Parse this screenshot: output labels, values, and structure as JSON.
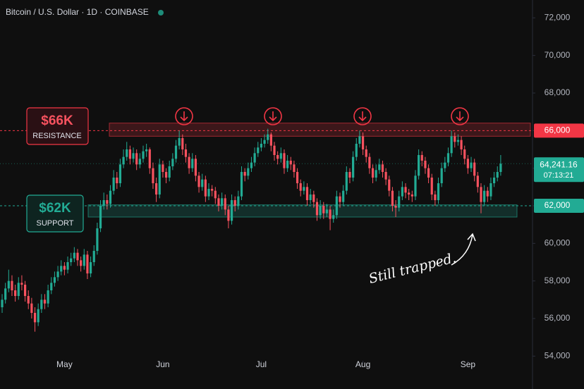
{
  "chart_data": {
    "type": "candlestick",
    "title": "Bitcoin / U.S. Dollar · 1D · COINBASE",
    "up_color": "#22ab94",
    "down_color": "#f7525f",
    "ylim": [
      52250,
      72950
    ],
    "xlim": [
      -0.65,
      161.7
    ],
    "yticks": [
      {
        "value": 54000,
        "label": "54,000"
      },
      {
        "value": 56000,
        "label": "56,000"
      },
      {
        "value": 58000,
        "label": "58,000"
      },
      {
        "value": 60000,
        "label": "60,000"
      },
      {
        "value": 62000,
        "label": "62,000"
      },
      {
        "value": 64000,
        "label": "64,000"
      },
      {
        "value": 66000,
        "label": "66,000"
      },
      {
        "value": 68000,
        "label": "68,000"
      },
      {
        "value": 70000,
        "label": "70,000"
      },
      {
        "value": 72000,
        "label": "72,000"
      }
    ],
    "xticks": [
      {
        "value": 19,
        "label": "May"
      },
      {
        "value": 49,
        "label": "Jun"
      },
      {
        "value": 79,
        "label": "Jul"
      },
      {
        "value": 110,
        "label": "Aug"
      },
      {
        "value": 142,
        "label": "Sep"
      }
    ],
    "levels": [
      {
        "value": 66000,
        "label": "66,000",
        "color": "#f23645"
      },
      {
        "value": 62000,
        "label": "62,000",
        "color": "#22ab94"
      }
    ],
    "zones": [
      {
        "from": 65700,
        "to": 66400,
        "color": "#f23645"
      },
      {
        "from": 61400,
        "to": 62050,
        "color": "#22ab94"
      }
    ],
    "last_price": {
      "value": 64241.16,
      "label": "64,241.16",
      "countdown": "07:13:21"
    },
    "annotations": [
      {
        "title": "$66K",
        "text": "RESISTANCE"
      },
      {
        "title": "$62K",
        "text": "SUPPORT"
      },
      {
        "text": "Still trapped."
      }
    ],
    "candles": [
      [
        56600,
        57300,
        56300,
        57000
      ],
      [
        57000,
        57900,
        56800,
        57600
      ],
      [
        57600,
        58600,
        57400,
        58000
      ],
      [
        58000,
        58300,
        57200,
        57500
      ],
      [
        57500,
        57800,
        56900,
        57200
      ],
      [
        57200,
        58200,
        57000,
        57900
      ],
      [
        57900,
        58300,
        57500,
        57800
      ],
      [
        57800,
        58000,
        56900,
        57200
      ],
      [
        57200,
        57500,
        56500,
        56800
      ],
      [
        56800,
        57100,
        56000,
        56300
      ],
      [
        56300,
        56600,
        55300,
        55800
      ],
      [
        55800,
        56800,
        55600,
        56500
      ],
      [
        56500,
        57300,
        56300,
        57000
      ],
      [
        57000,
        57300,
        56500,
        56800
      ],
      [
        56800,
        57800,
        56600,
        57500
      ],
      [
        57500,
        58200,
        57300,
        57900
      ],
      [
        57900,
        58500,
        57700,
        58200
      ],
      [
        58200,
        58800,
        58000,
        58500
      ],
      [
        58500,
        59100,
        58300,
        58800
      ],
      [
        58800,
        59000,
        58300,
        58600
      ],
      [
        58600,
        59300,
        58400,
        59000
      ],
      [
        59000,
        59500,
        58800,
        59200
      ],
      [
        59200,
        59800,
        59000,
        59500
      ],
      [
        59500,
        59700,
        58800,
        59100
      ],
      [
        59100,
        59300,
        58500,
        58800
      ],
      [
        58800,
        59700,
        58600,
        59400
      ],
      [
        59400,
        59600,
        58100,
        58400
      ],
      [
        58400,
        59300,
        58200,
        59000
      ],
      [
        59000,
        59900,
        58800,
        59600
      ],
      [
        59600,
        61100,
        59400,
        60800
      ],
      [
        60800,
        62300,
        60600,
        62000
      ],
      [
        62000,
        62700,
        61800,
        62300
      ],
      [
        62300,
        62600,
        61800,
        62100
      ],
      [
        62100,
        63100,
        61900,
        62800
      ],
      [
        62800,
        63900,
        62600,
        63500
      ],
      [
        63500,
        63800,
        62900,
        63200
      ],
      [
        63200,
        64500,
        63000,
        64200
      ],
      [
        64200,
        65000,
        64000,
        64600
      ],
      [
        64600,
        65400,
        64400,
        65000
      ],
      [
        65000,
        65200,
        64200,
        64500
      ],
      [
        64500,
        65100,
        64300,
        64800
      ],
      [
        64800,
        65000,
        63900,
        64200
      ],
      [
        64200,
        64800,
        64000,
        64500
      ],
      [
        64500,
        65200,
        64300,
        64900
      ],
      [
        64900,
        65300,
        64600,
        65000
      ],
      [
        65000,
        65100,
        63700,
        64000
      ],
      [
        64000,
        64300,
        62900,
        63200
      ],
      [
        63200,
        63500,
        62200,
        62600
      ],
      [
        62600,
        64500,
        62400,
        64200
      ],
      [
        64200,
        64400,
        63500,
        63800
      ],
      [
        63800,
        64000,
        63200,
        63500
      ],
      [
        63500,
        64400,
        63300,
        64100
      ],
      [
        64100,
        64800,
        63900,
        64500
      ],
      [
        64500,
        65500,
        64300,
        65200
      ],
      [
        65200,
        66000,
        65000,
        65600
      ],
      [
        65600,
        65800,
        64700,
        65000
      ],
      [
        65000,
        65300,
        64300,
        64600
      ],
      [
        64600,
        64800,
        63700,
        64000
      ],
      [
        64000,
        64800,
        63800,
        64500
      ],
      [
        64500,
        64700,
        63300,
        63600
      ],
      [
        63600,
        63800,
        62700,
        63000
      ],
      [
        63000,
        63700,
        62800,
        63400
      ],
      [
        63400,
        63600,
        62200,
        62500
      ],
      [
        62500,
        63200,
        62300,
        62900
      ],
      [
        62900,
        63100,
        62500,
        62800
      ],
      [
        62800,
        63000,
        62100,
        62400
      ],
      [
        62400,
        62600,
        61700,
        62000
      ],
      [
        62000,
        62700,
        61800,
        62400
      ],
      [
        62400,
        62600,
        61500,
        61800
      ],
      [
        61800,
        62000,
        60800,
        61200
      ],
      [
        61200,
        62600,
        61000,
        62300
      ],
      [
        62300,
        62500,
        61700,
        62000
      ],
      [
        62000,
        62800,
        61800,
        62500
      ],
      [
        62500,
        64100,
        62300,
        63800
      ],
      [
        63800,
        64000,
        63300,
        63600
      ],
      [
        63600,
        64300,
        63400,
        64000
      ],
      [
        64000,
        64600,
        63800,
        64300
      ],
      [
        64300,
        65100,
        64100,
        64800
      ],
      [
        64800,
        65400,
        64600,
        65100
      ],
      [
        65100,
        65600,
        64900,
        65300
      ],
      [
        65300,
        65800,
        65100,
        65500
      ],
      [
        65500,
        66100,
        65300,
        65800
      ],
      [
        65800,
        65900,
        64900,
        65200
      ],
      [
        65200,
        65400,
        64400,
        64700
      ],
      [
        64700,
        64900,
        64200,
        64500
      ],
      [
        64500,
        65100,
        64300,
        64800
      ],
      [
        64800,
        65000,
        63700,
        64000
      ],
      [
        64000,
        64700,
        63800,
        64400
      ],
      [
        64400,
        64600,
        63900,
        64200
      ],
      [
        64200,
        64400,
        63500,
        63800
      ],
      [
        63800,
        64000,
        62900,
        63200
      ],
      [
        63200,
        63400,
        62500,
        62800
      ],
      [
        62800,
        63300,
        62600,
        63000
      ],
      [
        63000,
        63200,
        62000,
        62300
      ],
      [
        62300,
        62900,
        62100,
        62600
      ],
      [
        62600,
        62800,
        61900,
        62200
      ],
      [
        62200,
        62400,
        61200,
        61500
      ],
      [
        61500,
        62300,
        61300,
        62000
      ],
      [
        62000,
        62200,
        61300,
        61600
      ],
      [
        61600,
        62100,
        61400,
        61800
      ],
      [
        61800,
        62000,
        60700,
        61300
      ],
      [
        61300,
        61800,
        61100,
        61500
      ],
      [
        61500,
        62800,
        61300,
        62500
      ],
      [
        62500,
        62700,
        61900,
        62200
      ],
      [
        62200,
        63100,
        62000,
        62800
      ],
      [
        62800,
        64100,
        62600,
        63800
      ],
      [
        63800,
        64000,
        63200,
        63500
      ],
      [
        63500,
        64900,
        63300,
        64600
      ],
      [
        64600,
        65600,
        64400,
        65300
      ],
      [
        65300,
        66000,
        65100,
        65700
      ],
      [
        65700,
        65900,
        64700,
        65000
      ],
      [
        65000,
        65200,
        64300,
        64600
      ],
      [
        64600,
        64800,
        63700,
        64000
      ],
      [
        64000,
        64200,
        63200,
        63500
      ],
      [
        63500,
        64200,
        63300,
        63900
      ],
      [
        63900,
        64500,
        63700,
        64200
      ],
      [
        64200,
        64400,
        63500,
        63800
      ],
      [
        63800,
        64000,
        63100,
        63400
      ],
      [
        63400,
        63600,
        62500,
        62800
      ],
      [
        62800,
        63000,
        61700,
        62000
      ],
      [
        62000,
        62300,
        61400,
        61900
      ],
      [
        61900,
        62800,
        61700,
        62500
      ],
      [
        62500,
        63300,
        62300,
        63000
      ],
      [
        63000,
        63200,
        62400,
        62700
      ],
      [
        62700,
        62900,
        62300,
        62600
      ],
      [
        62600,
        62800,
        62200,
        62500
      ],
      [
        62500,
        63900,
        62300,
        63600
      ],
      [
        63600,
        65000,
        63400,
        64700
      ],
      [
        64700,
        64900,
        64100,
        64400
      ],
      [
        64400,
        64600,
        63700,
        64000
      ],
      [
        64000,
        64200,
        63200,
        63500
      ],
      [
        63500,
        63700,
        62300,
        62600
      ],
      [
        62600,
        62800,
        62000,
        62300
      ],
      [
        62300,
        63500,
        62100,
        63200
      ],
      [
        63200,
        64300,
        63000,
        64000
      ],
      [
        64000,
        64600,
        63800,
        64300
      ],
      [
        64300,
        65100,
        64100,
        64800
      ],
      [
        64800,
        66000,
        64600,
        65700
      ],
      [
        65700,
        65900,
        65100,
        65400
      ],
      [
        65400,
        65800,
        65200,
        65500
      ],
      [
        65500,
        65700,
        64700,
        65000
      ],
      [
        65000,
        65200,
        64200,
        64500
      ],
      [
        64500,
        64700,
        63700,
        64000
      ],
      [
        64000,
        64600,
        63800,
        64300
      ],
      [
        64300,
        64500,
        63300,
        63600
      ],
      [
        63600,
        63800,
        62700,
        63000
      ],
      [
        63000,
        63200,
        61600,
        62200
      ],
      [
        62200,
        63100,
        62000,
        62800
      ],
      [
        62800,
        63000,
        62200,
        62500
      ],
      [
        62500,
        63500,
        62300,
        63200
      ],
      [
        63200,
        63800,
        63000,
        63500
      ],
      [
        63500,
        64100,
        63300,
        63800
      ],
      [
        63800,
        64700,
        63600,
        64241.16
      ]
    ]
  }
}
